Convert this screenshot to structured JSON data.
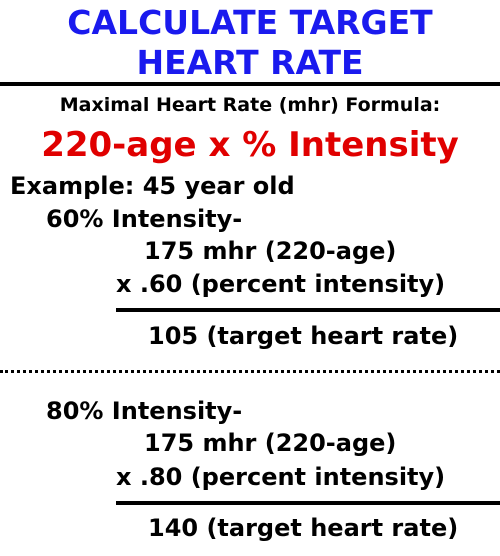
{
  "header": {
    "title_lines": [
      "CALCULATE TARGET",
      "HEART RATE"
    ]
  },
  "formula": {
    "heading": "Maximal Heart Rate (mhr) Formula:",
    "expression": "220-age x % Intensity"
  },
  "example": {
    "label": "Example: 45 year old",
    "cases": [
      {
        "intensity": "60% Intensity-",
        "mhr_line": "175 mhr (220-age)",
        "multiplier_line": "x .60 (percent intensity)",
        "result": "105 (target heart rate)"
      },
      {
        "intensity": "80% Intensity-",
        "mhr_line": "175 mhr (220-age)",
        "multiplier_line": "x .80 (percent intensity)",
        "result": "140 (target heart rate)"
      }
    ]
  }
}
